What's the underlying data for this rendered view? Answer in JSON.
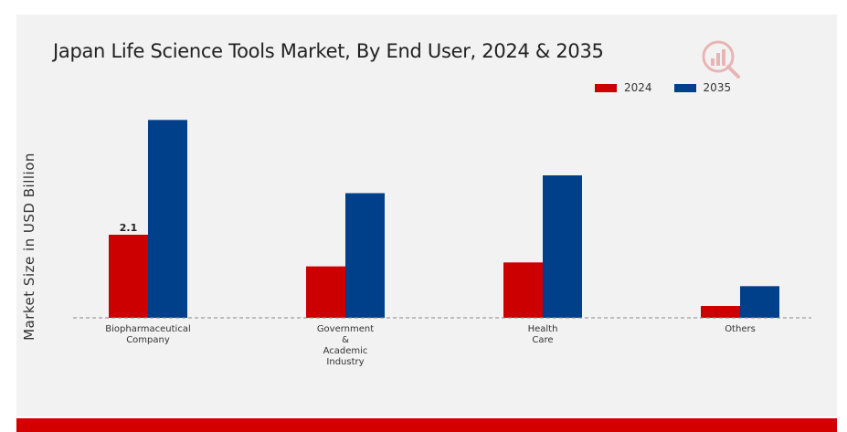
{
  "chart_data": {
    "type": "bar",
    "title": "Japan Life Science Tools Market, By End User, 2024 & 2035",
    "xlabel": "",
    "ylabel": "Market Size in USD Billion",
    "categories": [
      [
        "Biopharmaceutical",
        "Company"
      ],
      [
        "Government",
        "&",
        "Academic",
        "Industry"
      ],
      [
        "Health",
        "Care"
      ],
      [
        "Others"
      ]
    ],
    "series": [
      {
        "name": "2024",
        "color": "#cc0000",
        "values": [
          2.1,
          1.3,
          1.4,
          0.3
        ]
      },
      {
        "name": "2035",
        "color": "#003f8a",
        "values": [
          5.0,
          3.15,
          3.6,
          0.8
        ]
      }
    ],
    "data_labels": [
      {
        "series": 0,
        "index": 0,
        "text": "2.1"
      }
    ],
    "ylim": [
      0,
      6
    ],
    "grid": false,
    "legend_position": "top-right"
  },
  "logo_icon": "chart-logo-icon"
}
